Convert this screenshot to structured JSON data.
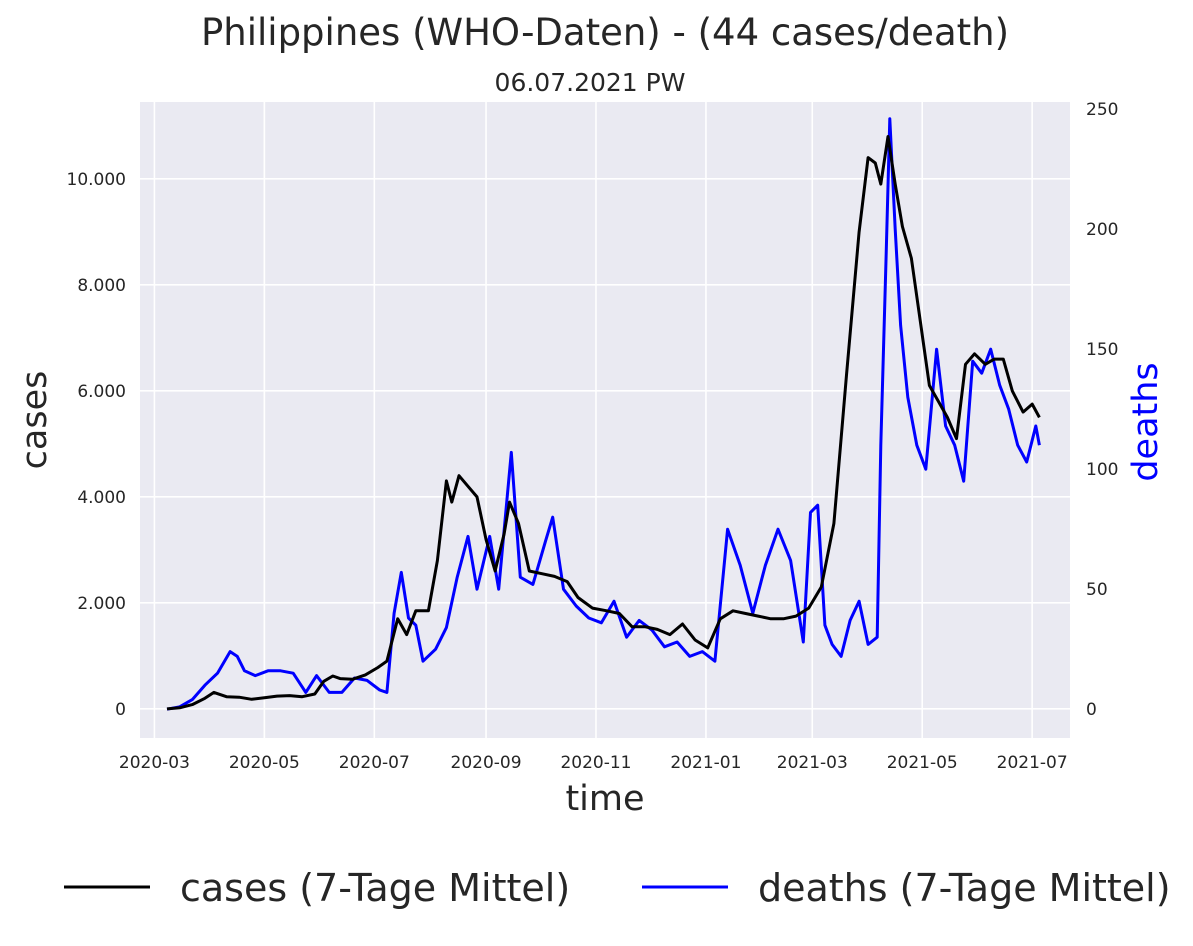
{
  "chart_data": {
    "type": "line",
    "title": "Philippines (WHO-Daten) - (44 cases/death)",
    "subtitle": "06.07.2021 PW",
    "xlabel": "time",
    "ylabel_left": "cases",
    "ylabel_right": "deaths",
    "x_ticks": [
      "2020-03",
      "2020-05",
      "2020-07",
      "2020-09",
      "2020-11",
      "2021-01",
      "2021-03",
      "2021-05",
      "2021-07"
    ],
    "xlim": [
      "2020-02-22",
      "2021-07-22"
    ],
    "y_left_ticks": [
      "0",
      "2.000",
      "4.000",
      "6.000",
      "8.000",
      "10.000"
    ],
    "y_left_tick_values": [
      0,
      2000,
      4000,
      6000,
      8000,
      10000
    ],
    "ylim_left": [
      -550,
      11450
    ],
    "y_right_ticks": [
      "0",
      "50",
      "100",
      "150",
      "200",
      "250"
    ],
    "y_right_tick_values": [
      0,
      50,
      100,
      150,
      200,
      250
    ],
    "ylim_right": [
      -12,
      253
    ],
    "grid": true,
    "legend_position": "bottom",
    "colors": {
      "cases": "#000000",
      "deaths": "#0000ff",
      "plot_bg": "#eaeaf2",
      "grid": "#ffffff",
      "deaths_label": "#0000ff"
    },
    "series": [
      {
        "name": "cases (7-Tage Mittel)",
        "axis": "left",
        "points": [
          [
            "2020-03-08",
            0
          ],
          [
            "2020-03-15",
            20
          ],
          [
            "2020-03-22",
            80
          ],
          [
            "2020-03-29",
            200
          ],
          [
            "2020-04-03",
            310
          ],
          [
            "2020-04-10",
            230
          ],
          [
            "2020-04-17",
            220
          ],
          [
            "2020-04-24",
            180
          ],
          [
            "2020-05-01",
            210
          ],
          [
            "2020-05-08",
            240
          ],
          [
            "2020-05-15",
            250
          ],
          [
            "2020-05-22",
            230
          ],
          [
            "2020-05-29",
            280
          ],
          [
            "2020-06-03",
            520
          ],
          [
            "2020-06-08",
            620
          ],
          [
            "2020-06-12",
            570
          ],
          [
            "2020-06-19",
            560
          ],
          [
            "2020-06-26",
            640
          ],
          [
            "2020-07-03",
            780
          ],
          [
            "2020-07-08",
            900
          ],
          [
            "2020-07-14",
            1700
          ],
          [
            "2020-07-19",
            1400
          ],
          [
            "2020-07-24",
            1850
          ],
          [
            "2020-07-31",
            1850
          ],
          [
            "2020-08-05",
            2800
          ],
          [
            "2020-08-10",
            4300
          ],
          [
            "2020-08-13",
            3900
          ],
          [
            "2020-08-17",
            4400
          ],
          [
            "2020-08-22",
            4200
          ],
          [
            "2020-08-27",
            4000
          ],
          [
            "2020-09-01",
            3200
          ],
          [
            "2020-09-06",
            2600
          ],
          [
            "2020-09-11",
            3300
          ],
          [
            "2020-09-14",
            3900
          ],
          [
            "2020-09-19",
            3500
          ],
          [
            "2020-09-25",
            2600
          ],
          [
            "2020-10-02",
            2550
          ],
          [
            "2020-10-09",
            2500
          ],
          [
            "2020-10-16",
            2400
          ],
          [
            "2020-10-22",
            2100
          ],
          [
            "2020-10-30",
            1900
          ],
          [
            "2020-11-07",
            1850
          ],
          [
            "2020-11-14",
            1800
          ],
          [
            "2020-11-21",
            1550
          ],
          [
            "2020-11-28",
            1550
          ],
          [
            "2020-12-05",
            1500
          ],
          [
            "2020-12-12",
            1400
          ],
          [
            "2020-12-19",
            1600
          ],
          [
            "2020-12-26",
            1300
          ],
          [
            "2021-01-02",
            1150
          ],
          [
            "2021-01-09",
            1700
          ],
          [
            "2021-01-16",
            1850
          ],
          [
            "2021-01-23",
            1800
          ],
          [
            "2021-01-30",
            1750
          ],
          [
            "2021-02-06",
            1700
          ],
          [
            "2021-02-13",
            1700
          ],
          [
            "2021-02-20",
            1750
          ],
          [
            "2021-02-27",
            1900
          ],
          [
            "2021-03-06",
            2300
          ],
          [
            "2021-03-13",
            3500
          ],
          [
            "2021-03-20",
            6300
          ],
          [
            "2021-03-27",
            9000
          ],
          [
            "2021-04-01",
            10400
          ],
          [
            "2021-04-05",
            10300
          ],
          [
            "2021-04-08",
            9900
          ],
          [
            "2021-04-12",
            10800
          ],
          [
            "2021-04-16",
            9900
          ],
          [
            "2021-04-20",
            9100
          ],
          [
            "2021-04-25",
            8500
          ],
          [
            "2021-04-30",
            7300
          ],
          [
            "2021-05-05",
            6100
          ],
          [
            "2021-05-10",
            5800
          ],
          [
            "2021-05-15",
            5500
          ],
          [
            "2021-05-20",
            5100
          ],
          [
            "2021-05-25",
            6500
          ],
          [
            "2021-05-30",
            6700
          ],
          [
            "2021-06-05",
            6500
          ],
          [
            "2021-06-10",
            6600
          ],
          [
            "2021-06-15",
            6600
          ],
          [
            "2021-06-20",
            6000
          ],
          [
            "2021-06-26",
            5600
          ],
          [
            "2021-07-01",
            5750
          ],
          [
            "2021-07-05",
            5500
          ]
        ]
      },
      {
        "name": "deaths (7-Tage Mittel)",
        "axis": "right",
        "points": [
          [
            "2020-03-08",
            0
          ],
          [
            "2020-03-15",
            1
          ],
          [
            "2020-03-22",
            4
          ],
          [
            "2020-03-29",
            10
          ],
          [
            "2020-04-05",
            15
          ],
          [
            "2020-04-12",
            24
          ],
          [
            "2020-04-16",
            22
          ],
          [
            "2020-04-20",
            16
          ],
          [
            "2020-04-26",
            14
          ],
          [
            "2020-05-03",
            16
          ],
          [
            "2020-05-10",
            16
          ],
          [
            "2020-05-17",
            15
          ],
          [
            "2020-05-24",
            7
          ],
          [
            "2020-05-30",
            14
          ],
          [
            "2020-06-06",
            7
          ],
          [
            "2020-06-13",
            7
          ],
          [
            "2020-06-20",
            13
          ],
          [
            "2020-06-27",
            12
          ],
          [
            "2020-07-04",
            8
          ],
          [
            "2020-07-08",
            7
          ],
          [
            "2020-07-12",
            40
          ],
          [
            "2020-07-16",
            57
          ],
          [
            "2020-07-20",
            38
          ],
          [
            "2020-07-24",
            35
          ],
          [
            "2020-07-28",
            20
          ],
          [
            "2020-08-04",
            25
          ],
          [
            "2020-08-10",
            34
          ],
          [
            "2020-08-16",
            55
          ],
          [
            "2020-08-22",
            72
          ],
          [
            "2020-08-27",
            50
          ],
          [
            "2020-09-03",
            72
          ],
          [
            "2020-09-08",
            50
          ],
          [
            "2020-09-15",
            107
          ],
          [
            "2020-09-20",
            55
          ],
          [
            "2020-09-27",
            52
          ],
          [
            "2020-10-04",
            70
          ],
          [
            "2020-10-08",
            80
          ],
          [
            "2020-10-14",
            50
          ],
          [
            "2020-10-21",
            43
          ],
          [
            "2020-10-28",
            38
          ],
          [
            "2020-11-04",
            36
          ],
          [
            "2020-11-11",
            45
          ],
          [
            "2020-11-18",
            30
          ],
          [
            "2020-11-25",
            37
          ],
          [
            "2020-12-02",
            33
          ],
          [
            "2020-12-09",
            26
          ],
          [
            "2020-12-16",
            28
          ],
          [
            "2020-12-23",
            22
          ],
          [
            "2020-12-30",
            24
          ],
          [
            "2021-01-06",
            20
          ],
          [
            "2021-01-13",
            75
          ],
          [
            "2021-01-20",
            60
          ],
          [
            "2021-01-27",
            40
          ],
          [
            "2021-02-03",
            60
          ],
          [
            "2021-02-10",
            75
          ],
          [
            "2021-02-17",
            62
          ],
          [
            "2021-02-24",
            28
          ],
          [
            "2021-02-28",
            82
          ],
          [
            "2021-03-04",
            85
          ],
          [
            "2021-03-08",
            35
          ],
          [
            "2021-03-12",
            27
          ],
          [
            "2021-03-17",
            22
          ],
          [
            "2021-03-22",
            37
          ],
          [
            "2021-03-27",
            45
          ],
          [
            "2021-04-01",
            27
          ],
          [
            "2021-04-06",
            30
          ],
          [
            "2021-04-08",
            110
          ],
          [
            "2021-04-11",
            190
          ],
          [
            "2021-04-13",
            246
          ],
          [
            "2021-04-16",
            200
          ],
          [
            "2021-04-19",
            160
          ],
          [
            "2021-04-23",
            130
          ],
          [
            "2021-04-28",
            110
          ],
          [
            "2021-05-03",
            100
          ],
          [
            "2021-05-09",
            150
          ],
          [
            "2021-05-14",
            118
          ],
          [
            "2021-05-19",
            110
          ],
          [
            "2021-05-24",
            95
          ],
          [
            "2021-05-29",
            145
          ],
          [
            "2021-06-03",
            140
          ],
          [
            "2021-06-08",
            150
          ],
          [
            "2021-06-13",
            135
          ],
          [
            "2021-06-18",
            125
          ],
          [
            "2021-06-23",
            110
          ],
          [
            "2021-06-28",
            103
          ],
          [
            "2021-07-03",
            118
          ],
          [
            "2021-07-05",
            110
          ]
        ]
      }
    ]
  }
}
